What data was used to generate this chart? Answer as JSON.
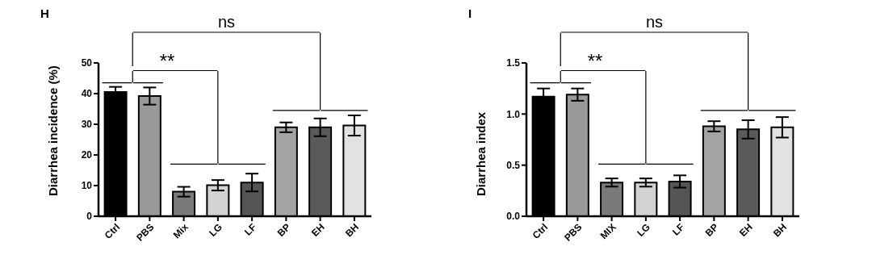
{
  "chart_data": [
    {
      "type": "bar",
      "title": "H",
      "ylabel": "Diarrhea incidence (%)",
      "categories": [
        "Ctrl",
        "PBS",
        "Mix",
        "LG",
        "LF",
        "BP",
        "EH",
        "BH"
      ],
      "values": [
        40.5,
        39.2,
        8,
        10.1,
        11,
        29,
        29,
        29.6
      ],
      "errors": [
        1.7,
        2.8,
        1.6,
        1.7,
        2.9,
        1.6,
        2.9,
        3.3
      ],
      "colors": [
        "#000000",
        "#999999",
        "#7a7a7a",
        "#d2d2d2",
        "#555555",
        "#a3a3a3",
        "#5a5a5a",
        "#e2e2e2"
      ],
      "ylim": [
        0,
        50
      ],
      "yticks": [
        0,
        10,
        20,
        30,
        40,
        50
      ],
      "grid": false,
      "annotations": [
        "**",
        "ns"
      ]
    },
    {
      "type": "bar",
      "title": "I",
      "ylabel": "Diarrhea index",
      "categories": [
        "Ctrl",
        "PBS",
        "MIX",
        "LG",
        "LF",
        "BP",
        "EH",
        "BH"
      ],
      "values": [
        1.17,
        1.19,
        0.33,
        0.33,
        0.34,
        0.88,
        0.85,
        0.87
      ],
      "errors": [
        0.08,
        0.06,
        0.04,
        0.04,
        0.06,
        0.05,
        0.09,
        0.1
      ],
      "colors": [
        "#000000",
        "#999999",
        "#7a7a7a",
        "#d2d2d2",
        "#555555",
        "#a3a3a3",
        "#5a5a5a",
        "#e2e2e2"
      ],
      "ylim": [
        0,
        1.5
      ],
      "yticks": [
        {
          "value": 0,
          "label": "0.0"
        },
        0.5,
        {
          "value": 1,
          "label": "1.0"
        },
        1.5
      ],
      "grid": false,
      "annotations": [
        "**",
        "ns"
      ]
    }
  ]
}
